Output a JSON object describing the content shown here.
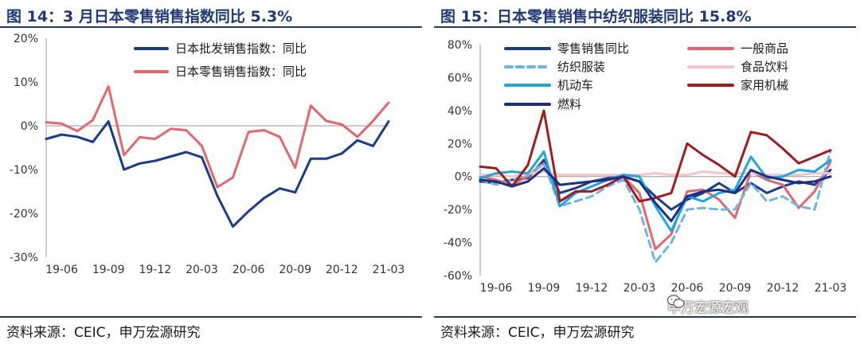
{
  "chart_data": [
    {
      "type": "line",
      "title": "图 14：3 月日本零售销售指数同比 5.3%",
      "source": "资料来源：CEIC，申万宏源研究",
      "x_ticks": [
        "19-06",
        "19-09",
        "19-12",
        "20-03",
        "20-06",
        "20-09",
        "20-12",
        "21-03"
      ],
      "y_ticks": [
        "20%",
        "10%",
        "0%",
        "-10%",
        "-20%",
        "-30%"
      ],
      "ylim": [
        -30,
        20
      ],
      "x": [
        "19-05",
        "19-06",
        "19-07",
        "19-08",
        "19-09",
        "19-10",
        "19-11",
        "19-12",
        "20-01",
        "20-02",
        "20-03",
        "20-04",
        "20-05",
        "20-06",
        "20-07",
        "20-08",
        "20-09",
        "20-10",
        "20-11",
        "20-12",
        "21-01",
        "21-02",
        "21-03"
      ],
      "legend_position": "top-right",
      "series": [
        {
          "name": "日本批发销售指数：同比",
          "color": "#1a3c8e",
          "values": [
            -3.0,
            -2.0,
            -2.5,
            -3.7,
            1.0,
            -10.0,
            -8.6,
            -8.0,
            -7.0,
            -6.0,
            -7.2,
            -16.0,
            -23.0,
            -19.5,
            -16.5,
            -14.3,
            -15.2,
            -7.5,
            -7.5,
            -6.3,
            -3.3,
            -4.6,
            1.0
          ]
        },
        {
          "name": "日本零售销售指数：同比",
          "color": "#e8666b",
          "values": [
            0.8,
            0.5,
            -1.2,
            1.3,
            9.0,
            -6.7,
            -2.6,
            -3.0,
            -0.7,
            -1.0,
            -4.6,
            -14.0,
            -11.8,
            -1.4,
            -1.0,
            -2.5,
            -9.6,
            4.6,
            1.1,
            0.3,
            -2.5,
            1.1,
            5.3
          ]
        }
      ]
    },
    {
      "type": "line",
      "title": "图 15：日本零售销售中纺织服装同比 15.8%",
      "source": "资料来源：CEIC，申万宏源研究",
      "x_ticks": [
        "19-06",
        "19-09",
        "19-12",
        "20-03",
        "20-06",
        "20-09",
        "20-12",
        "21-03"
      ],
      "y_ticks": [
        "80%",
        "60%",
        "40%",
        "20%",
        "0%",
        "-20%",
        "-40%",
        "-60%"
      ],
      "ylim": [
        -60,
        80
      ],
      "x": [
        "19-05",
        "19-06",
        "19-07",
        "19-08",
        "19-09",
        "19-10",
        "19-11",
        "19-12",
        "20-01",
        "20-02",
        "20-03",
        "20-04",
        "20-05",
        "20-06",
        "20-07",
        "20-08",
        "20-09",
        "20-10",
        "20-11",
        "20-12",
        "21-01",
        "21-02",
        "21-03"
      ],
      "legend_position": "top",
      "series": [
        {
          "name": "零售销售同比",
          "color": "#1a3c8e",
          "width": 3,
          "dash": "",
          "values": [
            -3,
            -4,
            -2,
            -1,
            10,
            -10,
            -7,
            -3,
            -1,
            0,
            -3,
            -12,
            -20,
            -14,
            -10,
            -4,
            -10,
            -4,
            -10,
            -6,
            -3,
            -5,
            4
          ]
        },
        {
          "name": "一般商品",
          "color": "#e8666b",
          "width": 3,
          "dash": "",
          "values": [
            0,
            -2,
            -5,
            0,
            8,
            -15,
            -10,
            -6,
            -2,
            0,
            -10,
            -44,
            -35,
            -9,
            -8,
            -14,
            -25,
            3,
            -2,
            -5,
            -19,
            -9,
            9
          ]
        },
        {
          "name": "纺织服装",
          "color": "#6cb6e8",
          "width": 3,
          "dash": "9,6",
          "values": [
            -2,
            -5,
            -2,
            1,
            8,
            -18,
            -15,
            -12,
            -6,
            -2,
            -20,
            -52,
            -40,
            -20,
            -19,
            -20,
            -20,
            -4,
            -15,
            -12,
            -18,
            -20,
            15.8
          ]
        },
        {
          "name": "食品饮料",
          "color": "#f4c6c6",
          "width": 3,
          "dash": "",
          "values": [
            1,
            1,
            0,
            2,
            3,
            1,
            1,
            1,
            1,
            1,
            1,
            2,
            1,
            1,
            3,
            2,
            2,
            2,
            1,
            1,
            1,
            2,
            2
          ]
        },
        {
          "name": "机动车",
          "color": "#19a9e6",
          "width": 3,
          "dash": "",
          "values": [
            -1,
            2,
            3,
            2,
            15,
            -18,
            -10,
            -6,
            -2,
            1,
            0,
            -18,
            -33,
            -12,
            -15,
            -10,
            -8,
            12,
            -1,
            0,
            4,
            3,
            10
          ]
        },
        {
          "name": "家用机械",
          "color": "#a11d1d",
          "width": 3,
          "dash": "",
          "values": [
            6,
            5,
            -6,
            7,
            40,
            -15,
            -9,
            -9,
            -5,
            0,
            -15,
            -13,
            -10,
            20,
            13,
            7,
            0,
            27,
            25,
            17,
            8,
            12,
            16
          ]
        },
        {
          "name": "燃料",
          "color": "#1a2f86",
          "width": 3,
          "dash": "",
          "values": [
            -2,
            -3,
            -6,
            -3,
            5,
            -5,
            -4,
            -3,
            -2,
            0,
            -3,
            -16,
            -27,
            -12,
            -9,
            -8,
            -10,
            4,
            0,
            -2,
            -4,
            -3,
            0
          ]
        }
      ]
    }
  ],
  "watermark": {
    "text": "申万宏源宏观",
    "icon": "wechat-icon"
  }
}
